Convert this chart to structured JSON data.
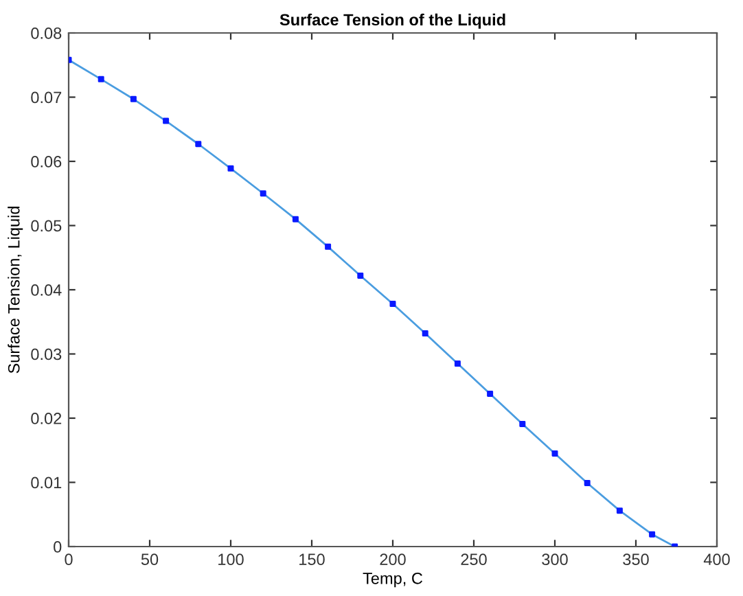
{
  "chart_data": {
    "type": "line",
    "title": "Surface Tension of the Liquid",
    "xlabel": "Temp, C",
    "ylabel": "Surface Tension, Liquid",
    "x": [
      0,
      20,
      40,
      60,
      80,
      100,
      120,
      140,
      160,
      180,
      200,
      220,
      240,
      260,
      280,
      300,
      320,
      340,
      360,
      374
    ],
    "series": [
      {
        "color": "#4a9de0",
        "marker": "none",
        "values": [
          0.0758,
          0.0728,
          0.0697,
          0.0663,
          0.0627,
          0.0589,
          0.055,
          0.051,
          0.0467,
          0.0422,
          0.0378,
          0.0332,
          0.0285,
          0.0238,
          0.0191,
          0.0145,
          0.0099,
          0.0056,
          0.0019,
          0
        ]
      },
      {
        "type": "scatter",
        "color": "#0a1aff",
        "marker": "square",
        "values": [
          0.0758,
          0.0728,
          0.0697,
          0.0663,
          0.0627,
          0.0589,
          0.055,
          0.051,
          0.0467,
          0.0422,
          0.0378,
          0.0332,
          0.0285,
          0.0238,
          0.0191,
          0.0145,
          0.0099,
          0.0056,
          0.0019,
          0
        ]
      }
    ],
    "xlim": [
      0,
      400
    ],
    "xticks": [
      0,
      50,
      100,
      150,
      200,
      250,
      300,
      350,
      400
    ],
    "ylim": [
      0,
      0.08
    ],
    "yticks": [
      0,
      0.01,
      0.02,
      0.03,
      0.04,
      0.05,
      0.06,
      0.07,
      0.08
    ],
    "grid": false,
    "legend": false
  }
}
